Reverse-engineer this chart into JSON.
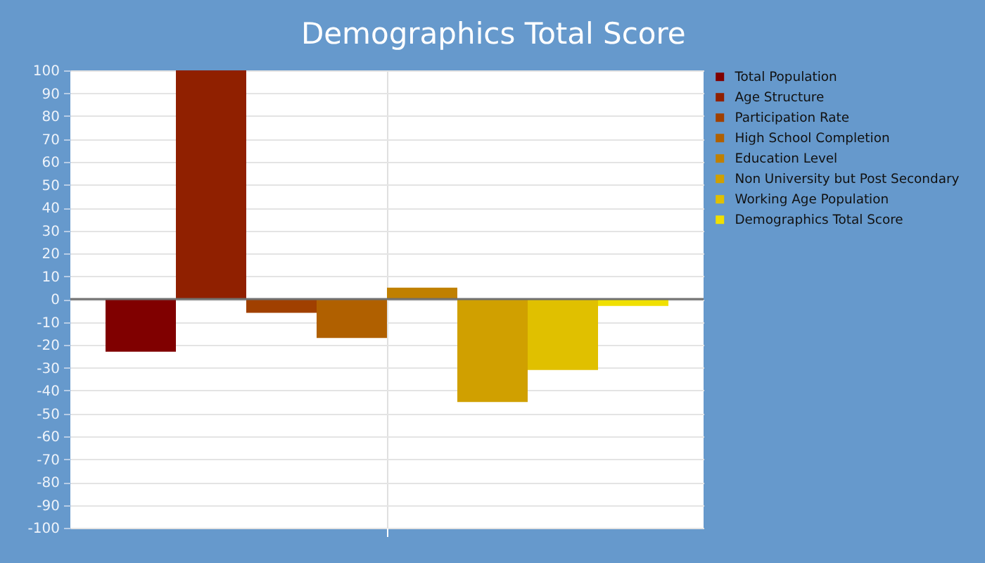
{
  "chart_data": {
    "type": "bar",
    "title": "Demographics Total Score",
    "categories": [
      null
    ],
    "series": [
      {
        "name": "Total Population",
        "color": "#800000",
        "values": [
          -23
        ]
      },
      {
        "name": "Age Structure",
        "color": "#902000",
        "values": [
          100
        ]
      },
      {
        "name": "Participation Rate",
        "color": "#a04000",
        "values": [
          -6
        ]
      },
      {
        "name": "High School Completion",
        "color": "#b06000",
        "values": [
          -17
        ]
      },
      {
        "name": "Education Level",
        "color": "#c08000",
        "values": [
          5
        ]
      },
      {
        "name": "Non University but Post Secondary",
        "color": "#d0a000",
        "values": [
          -45
        ]
      },
      {
        "name": "Working Age Population",
        "color": "#e0c000",
        "values": [
          -31
        ]
      },
      {
        "name": "Demographics Total Score",
        "color": "#f0e000",
        "values": [
          -3
        ]
      }
    ],
    "ylim": [
      -100,
      100
    ],
    "yticks": [
      -100,
      -90,
      -80,
      -70,
      -60,
      -50,
      -40,
      -30,
      -20,
      -10,
      0,
      10,
      20,
      30,
      40,
      50,
      60,
      70,
      80,
      90,
      100
    ],
    "grid": true,
    "legend": "top right",
    "ref_lines": [
      {
        "axis": "y",
        "value": 0,
        "color": "#707070"
      }
    ]
  }
}
